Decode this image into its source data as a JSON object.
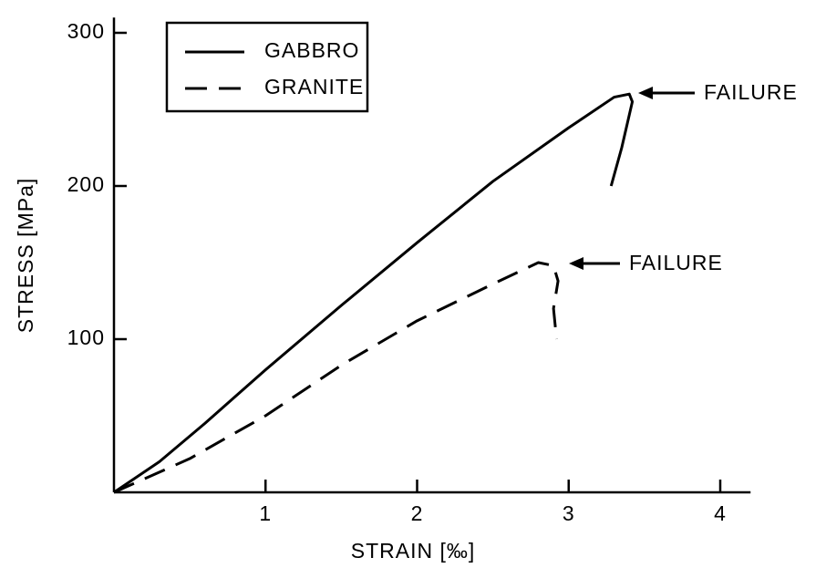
{
  "chart_data": {
    "type": "line",
    "xlabel": "STRAIN [‰]",
    "ylabel": "STRESS [MPa]",
    "xlim": [
      0,
      4.2
    ],
    "ylim": [
      0,
      310
    ],
    "xticks": [
      1,
      2,
      3,
      4
    ],
    "yticks": [
      100,
      200,
      300
    ],
    "legend": "upper left",
    "annotations": [
      "FAILURE",
      "FAILURE"
    ],
    "series": [
      {
        "name": "GABBRO",
        "color": "#000000",
        "dash": false,
        "x": [
          0,
          0.3,
          0.6,
          1,
          1.5,
          2,
          2.5,
          3,
          3.3,
          3.4,
          3.42,
          3.35,
          3.28
        ],
        "values": [
          0,
          20,
          45,
          80,
          122,
          163,
          203,
          238,
          258,
          260,
          255,
          225,
          200
        ]
      },
      {
        "name": "GRANITE",
        "color": "#000000",
        "dash": true,
        "x": [
          0,
          0.5,
          1,
          1.5,
          2,
          2.5,
          2.8,
          2.9,
          2.93,
          2.9,
          2.92
        ],
        "values": [
          0,
          22,
          50,
          83,
          112,
          136,
          150,
          148,
          138,
          120,
          100
        ]
      }
    ]
  }
}
